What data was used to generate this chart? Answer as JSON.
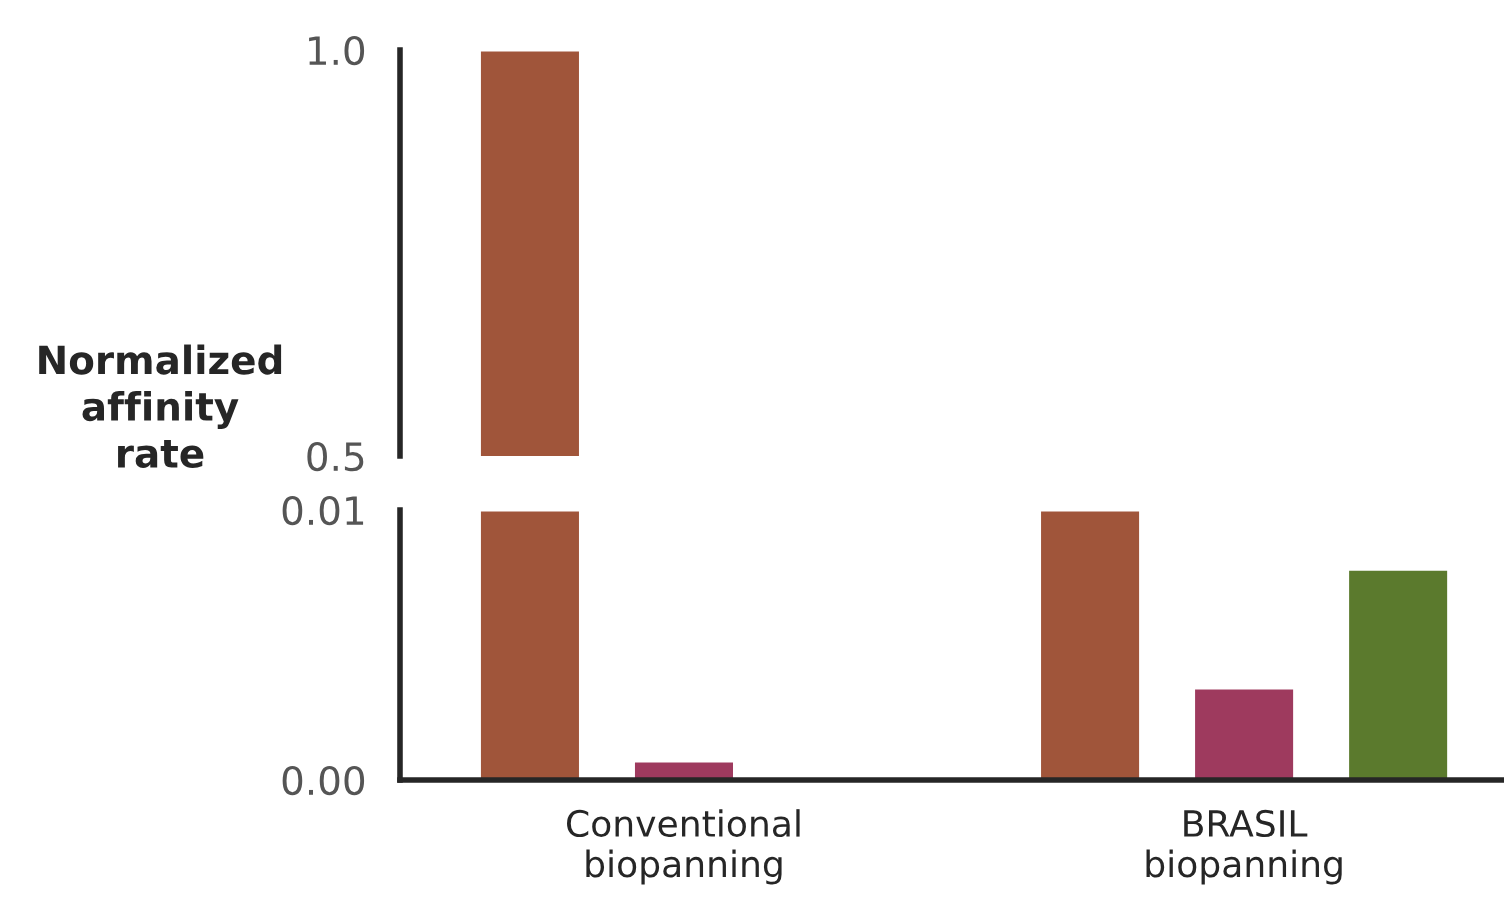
{
  "chart_data": [
    {
      "type": "bar",
      "ylabel": "Normalized\naffinity\nrate",
      "ylim": [
        0.5,
        1.0
      ],
      "yticks": [
        {
          "value": 1.0,
          "label": "1.0"
        },
        0.5
      ],
      "tick_labels": "y",
      "grid": false,
      "series": [
        {
          "color": "#a0553a",
          "values": [
            1.0,
            null
          ]
        }
      ]
    },
    {
      "type": "bar",
      "categories": [
        "Conventional\nbiopanning",
        "BRASIL\nbiopanning"
      ],
      "ylim": [
        0,
        0.01
      ],
      "yticks": [
        {
          "value": 0,
          "label": "0.00"
        },
        0.01
      ],
      "grid": false,
      "series": [
        {
          "color": "#a0553a",
          "values": [
            0.01,
            0.01
          ]
        },
        {
          "color": "#9e3a5e",
          "values": [
            0.0007,
            0.0034
          ]
        },
        {
          "color": "#5b7a2d",
          "values": [
            null,
            0.0078
          ]
        }
      ]
    }
  ]
}
